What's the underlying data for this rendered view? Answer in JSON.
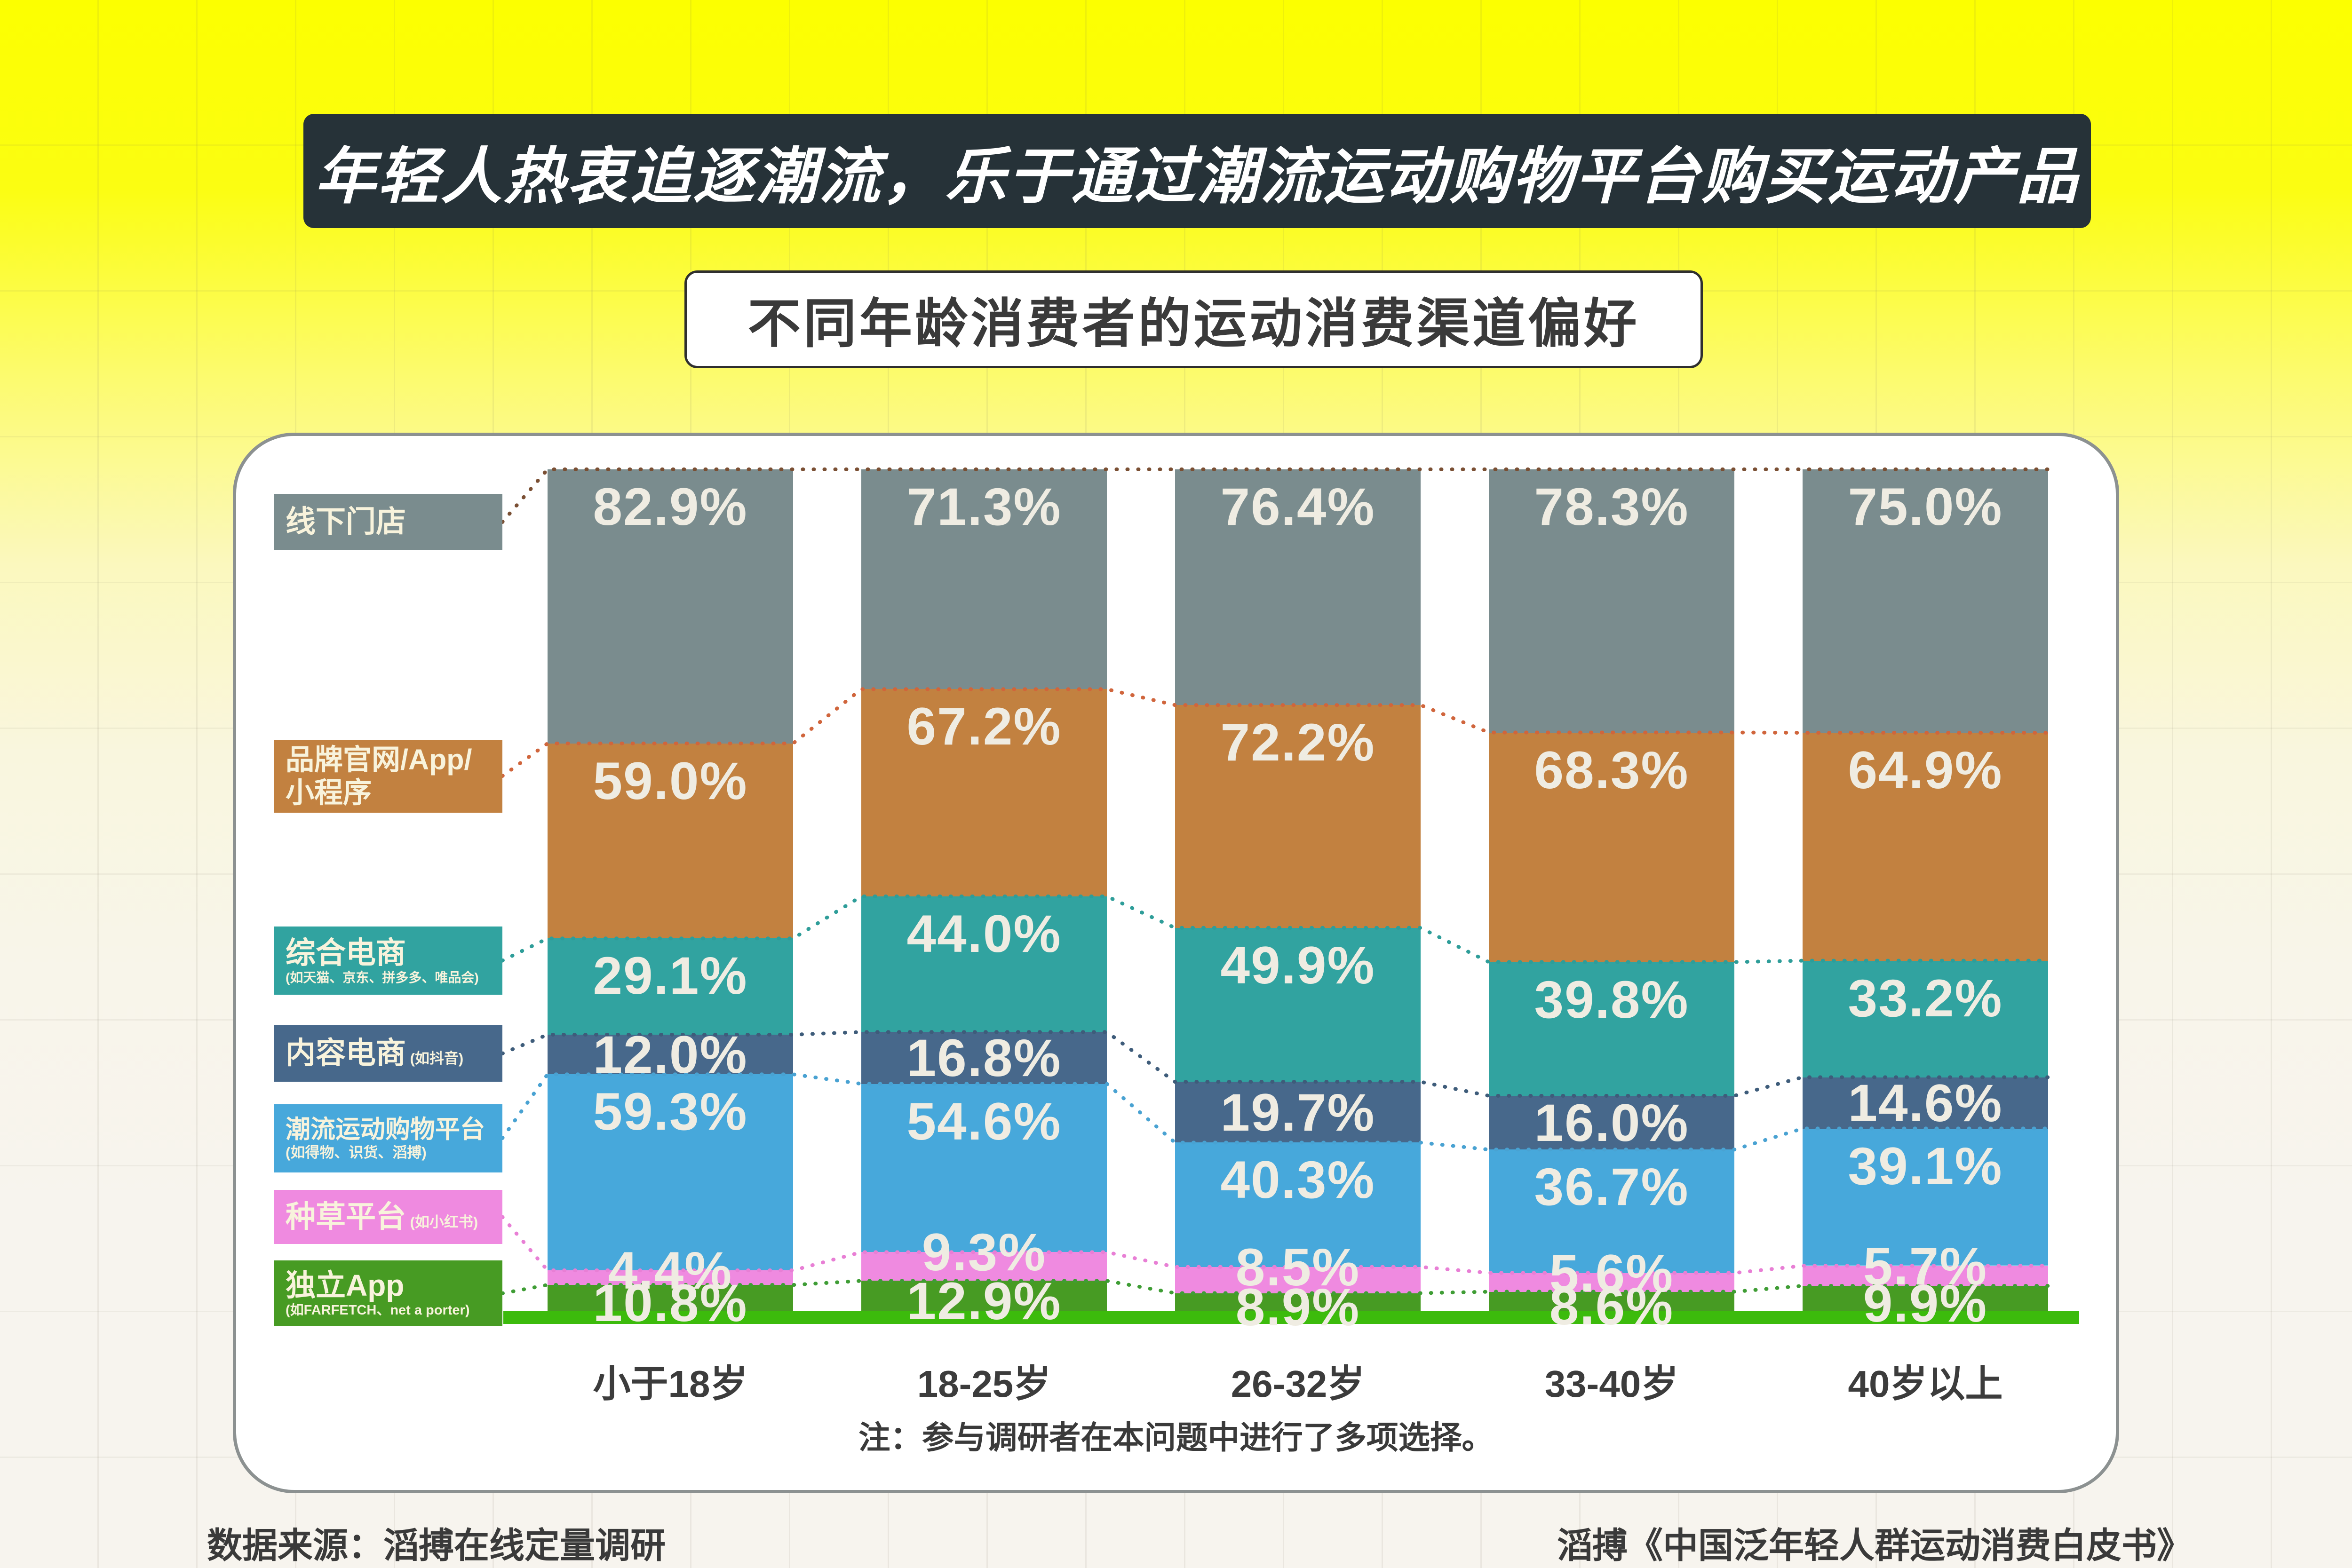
{
  "banner": {
    "title": "年轻人热衷追逐潮流，乐于通过潮流运动购物平台购买运动产品",
    "bg": "#263238",
    "text_color": "#FFFFFF"
  },
  "subtitle": "不同年龄消费者的运动消费渠道偏好",
  "note": "注：参与调研者在本问题中进行了多项选择。",
  "footer": {
    "left": "数据来源：滔搏在线定量调研",
    "right": "滔搏《中国泛年轻人群运动消费白皮书》"
  },
  "palette": {
    "page_top_yellow": "#FCFF00",
    "page_bottom_cream": "#F7F4EE",
    "card_bg": "#FFFFFF",
    "card_border": "#8C9191",
    "value_text": "#EFECE2",
    "label_text": "#F8F3DC",
    "baseline_green": "#3CBB0C",
    "age_text": "#3C3C3C",
    "note_text": "#3A3A3A",
    "footer_text": "#3A3A3A",
    "subtitle_text": "#3A3A3A"
  },
  "chart_data": {
    "type": "bar",
    "stacked": true,
    "normalized_height": true,
    "title": "不同年龄消费者的运动消费渠道偏好",
    "unit": "%",
    "legend_position": "left",
    "grid": false,
    "categories": [
      "小于18岁",
      "18-25岁",
      "26-32岁",
      "33-40岁",
      "40岁以上"
    ],
    "series": [
      {
        "name": "线下门店",
        "label_lines": [
          "线下门店"
        ],
        "sub": null,
        "sub_inline": false,
        "color": "#7A8C8E",
        "connector": "#7A4F33",
        "values": [
          82.9,
          71.3,
          76.4,
          78.3,
          75.0
        ]
      },
      {
        "name": "品牌官网/App/小程序",
        "label_lines": [
          "品牌官网/App/",
          "小程序"
        ],
        "sub": null,
        "sub_inline": false,
        "color": "#C28140",
        "connector": "#D0653C",
        "values": [
          59.0,
          67.2,
          72.2,
          68.3,
          64.9
        ]
      },
      {
        "name": "综合电商",
        "label_lines": [
          "综合电商"
        ],
        "sub": "(如天猫、京东、拼多多、唯品会)",
        "sub_inline": false,
        "color": "#31A3A0",
        "connector": "#2E9D99",
        "values": [
          29.1,
          44.0,
          49.9,
          39.8,
          33.2
        ]
      },
      {
        "name": "内容电商",
        "label_lines": [
          "内容电商"
        ],
        "sub": "(如抖音)",
        "sub_inline": true,
        "color": "#47688B",
        "connector": "#3E5C7A",
        "values": [
          12.0,
          16.8,
          19.7,
          16.0,
          14.6
        ]
      },
      {
        "name": "潮流运动购物平台",
        "label_lines": [
          "潮流运动购物平台"
        ],
        "sub": "(如得物、识货、滔搏)",
        "sub_inline": false,
        "color": "#47A8DB",
        "connector": "#49A2D2",
        "values": [
          59.3,
          54.6,
          40.3,
          36.7,
          39.1
        ]
      },
      {
        "name": "种草平台",
        "label_lines": [
          "种草平台"
        ],
        "sub": "(如小红书)",
        "sub_inline": true,
        "color": "#EF8AE0",
        "connector": "#E87FD5",
        "values": [
          4.4,
          9.3,
          8.5,
          5.6,
          5.7
        ]
      },
      {
        "name": "独立App",
        "label_lines": [
          "独立App"
        ],
        "sub": "(如FARFETCH、net a porter)",
        "sub_inline": false,
        "color": "#479B23",
        "connector": "#3F9D35",
        "values": [
          10.8,
          12.9,
          8.9,
          8.6,
          9.9
        ]
      }
    ]
  }
}
